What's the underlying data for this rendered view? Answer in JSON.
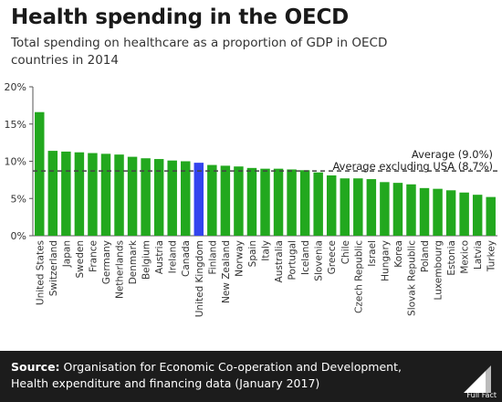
{
  "header": {
    "title": "Health spending in the OECD",
    "subtitle": "Total spending on healthcare as a proportion of GDP in OECD countries in 2014"
  },
  "footer": {
    "source_label": "Source:",
    "source_text": "Organisation for Economic Co-operation and Development, Health expenditure and financing data (January 2017)",
    "logo_text": "Full Fact"
  },
  "colors": {
    "bar": "#22a81e",
    "highlight": "#3344ee",
    "average_line": "#444444",
    "footer_bg": "#1c1c1c"
  },
  "chart_data": {
    "type": "bar",
    "categories": [
      "United States",
      "Switzerland",
      "Japan",
      "Sweden",
      "France",
      "Germany",
      "Netherlands",
      "Denmark",
      "Belgium",
      "Austria",
      "Ireland",
      "Canada",
      "United Kingdom",
      "Finland",
      "New Zealand",
      "Norway",
      "Spain",
      "Italy",
      "Australia",
      "Portugal",
      "Iceland",
      "Slovenia",
      "Greece",
      "Chile",
      "Czech Republic",
      "Israel",
      "Hungary",
      "Korea",
      "Slovak Republic",
      "Poland",
      "Luxembourg",
      "Estonia",
      "Mexico",
      "Latvia",
      "Turkey"
    ],
    "values": [
      16.6,
      11.4,
      11.3,
      11.2,
      11.1,
      11.0,
      10.9,
      10.6,
      10.4,
      10.3,
      10.1,
      10.0,
      9.8,
      9.5,
      9.4,
      9.3,
      9.1,
      9.0,
      9.0,
      8.9,
      8.8,
      8.5,
      8.1,
      7.7,
      7.7,
      7.6,
      7.2,
      7.1,
      6.9,
      6.4,
      6.3,
      6.1,
      5.8,
      5.5,
      5.2
    ],
    "highlight_category": "United Kingdom",
    "ylim": [
      0,
      20
    ],
    "yticks": [
      "0%",
      "5%",
      "10%",
      "15%",
      "20%"
    ],
    "ytick_values": [
      0,
      5,
      10,
      15,
      20
    ],
    "reference_lines": [
      {
        "label": "Average (9.0%)",
        "value": 9.0
      },
      {
        "label": "Average excluding USA (8.7%)",
        "value": 8.7
      }
    ],
    "grid": false
  }
}
